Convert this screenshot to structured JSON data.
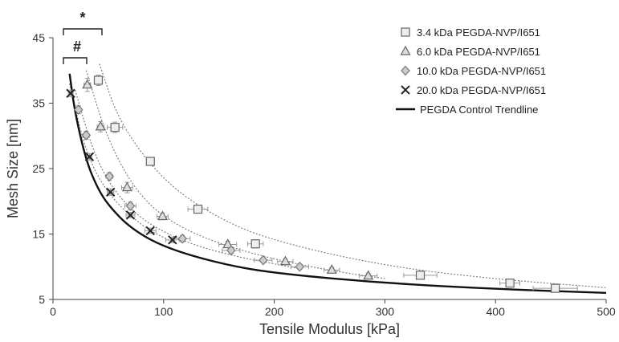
{
  "chart_data": {
    "type": "scatter",
    "title": "",
    "xlabel": "Tensile Modulus [kPa]",
    "ylabel": "Mesh Size [nm]",
    "xlim": [
      0,
      500
    ],
    "ylim": [
      5,
      45
    ],
    "xticks": [
      "0",
      "100",
      "200",
      "300",
      "400",
      "500"
    ],
    "yticks": [
      "5",
      "15",
      "25",
      "35",
      "45"
    ],
    "grid": false,
    "legend_position": "top-right",
    "annotations": [
      "*",
      "#"
    ],
    "series": [
      {
        "name": "3.4 kDa PEGDA-NVP/I651",
        "marker": "square",
        "color": "#888888",
        "x": [
          41,
          56,
          88,
          131,
          183,
          332,
          413,
          454
        ],
        "y": [
          38.5,
          31.3,
          26.1,
          18.8,
          13.5,
          8.7,
          7.5,
          6.7
        ],
        "xerr": [
          3,
          7,
          3,
          9,
          7,
          15,
          9,
          20
        ],
        "yerr": [
          0.8,
          0.8,
          0.6,
          0.6,
          0.6,
          0.4,
          0.4,
          0.4
        ],
        "trend": [
          [
            42,
            41
          ],
          [
            60,
            32
          ],
          [
            100,
            23
          ],
          [
            150,
            17.3
          ],
          [
            200,
            13.9
          ],
          [
            300,
            10.1
          ],
          [
            400,
            8.1
          ],
          [
            500,
            6.8
          ]
        ]
      },
      {
        "name": "6.0 kDa PEGDA-NVP/I651",
        "marker": "triangle",
        "color": "#888888",
        "x": [
          31,
          43,
          67,
          99,
          158,
          210,
          252,
          285
        ],
        "y": [
          37.8,
          31.4,
          22.1,
          17.7,
          13.4,
          10.8,
          9.5,
          8.6
        ],
        "xerr": [
          3,
          3,
          5,
          5,
          8,
          7,
          7,
          8
        ],
        "yerr": [
          1.0,
          0.8,
          0.8,
          0.5,
          0.5,
          0.4,
          0.4,
          0.4
        ],
        "trend": [
          [
            30,
            40
          ],
          [
            50,
            29
          ],
          [
            80,
            20.2
          ],
          [
            120,
            15.4
          ],
          [
            180,
            11.9
          ],
          [
            250,
            9.4
          ],
          [
            300,
            8.2
          ]
        ]
      },
      {
        "name": "10.0 kDa PEGDA-NVP/I651",
        "marker": "diamond",
        "color": "#888888",
        "x": [
          23,
          30,
          51,
          70,
          117,
          161,
          190,
          223
        ],
        "y": [
          34.0,
          30.1,
          23.8,
          19.3,
          14.3,
          12.5,
          11.0,
          10.0
        ],
        "xerr": [
          2,
          2,
          3,
          5,
          7,
          8,
          8,
          8
        ],
        "yerr": [
          0.6,
          0.6,
          0.6,
          0.6,
          0.5,
          0.5,
          0.4,
          0.4
        ],
        "trend": [
          [
            20,
            37
          ],
          [
            40,
            25.5
          ],
          [
            70,
            18.4
          ],
          [
            110,
            14.3
          ],
          [
            160,
            11.7
          ],
          [
            220,
            9.8
          ]
        ]
      },
      {
        "name": "20.0 kDa PEGDA-NVP/I651",
        "marker": "x",
        "color": "#222222",
        "x": [
          16,
          33,
          52,
          70,
          88,
          108
        ],
        "y": [
          36.5,
          26.8,
          21.4,
          17.9,
          15.5,
          14.1
        ],
        "xerr": [
          2,
          2,
          3,
          4,
          5,
          6
        ],
        "yerr": [
          0.5,
          0.5,
          0.5,
          0.4,
          0.4,
          0.4
        ],
        "trend": [
          [
            15,
            38
          ],
          [
            30,
            27.2
          ],
          [
            50,
            21.0
          ],
          [
            80,
            16.2
          ],
          [
            110,
            13.6
          ]
        ]
      },
      {
        "name": "PEGDA Control Trendline",
        "marker": "line",
        "color": "#111111",
        "trend": [
          [
            15,
            39.5
          ],
          [
            20,
            33.4
          ],
          [
            30,
            26.2
          ],
          [
            40,
            22.1
          ],
          [
            50,
            19.4
          ],
          [
            70,
            15.9
          ],
          [
            100,
            13.0
          ],
          [
            150,
            10.5
          ],
          [
            200,
            9.0
          ],
          [
            300,
            7.5
          ],
          [
            400,
            6.6
          ],
          [
            500,
            6.0
          ]
        ]
      }
    ]
  }
}
